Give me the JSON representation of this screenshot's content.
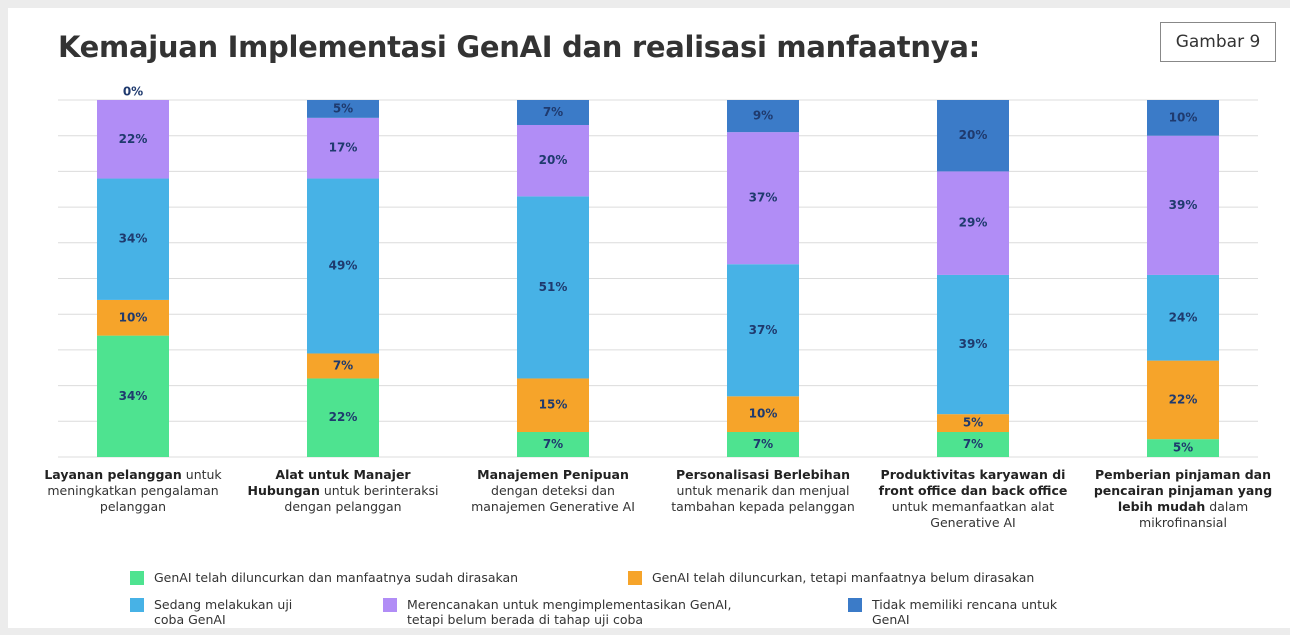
{
  "chart_data": {
    "type": "stacked_bar",
    "title": "Kemajuan Implementasi GenAI dan realisasi manfaatnya:",
    "figure_label": "Gambar 9",
    "categories": [
      {
        "bold": "Layanan pelanggan",
        "text": "untuk meningkatkan pengalaman pelanggan"
      },
      {
        "bold": "Alat untuk Manajer Hubungan",
        "text": "untuk berinteraksi dengan pelanggan"
      },
      {
        "bold": "Manajemen Penipuan",
        "text": "dengan deteksi dan manajemen Generative AI"
      },
      {
        "bold": "Personalisasi Berlebihan",
        "text": "untuk menarik dan menjual tambahan kepada pelanggan"
      },
      {
        "bold": "Produktivitas karyawan di front office dan back office",
        "text": "untuk memanfaatkan alat Generative AI"
      },
      {
        "bold": "Pemberian pinjaman dan pencairan pinjaman yang lebih mudah",
        "text": "dalam mikrofinansial"
      }
    ],
    "series": [
      {
        "name": "GenAI telah diluncurkan dan manfaatnya sudah dirasakan",
        "color": "#4ee390",
        "values": [
          34,
          22,
          7,
          7,
          7,
          5
        ],
        "value_labels": [
          "34%",
          "22%",
          "7%",
          "7%",
          "7%",
          "5%"
        ]
      },
      {
        "name": "GenAI telah diluncurkan, tetapi manfaatnya belum dirasakan",
        "color": "#f6a42a",
        "values": [
          10,
          7,
          15,
          10,
          5,
          22
        ],
        "value_labels": [
          "10%",
          "7%",
          "15%",
          "10%",
          "5%",
          "22%"
        ]
      },
      {
        "name": "Sedang melakukan uji coba GenAI",
        "color": "#47b2e6",
        "values": [
          34,
          49,
          51,
          37,
          39,
          24
        ],
        "value_labels": [
          "34%",
          "49%",
          "51%",
          "37%",
          "39%",
          "24%"
        ]
      },
      {
        "name": "Merencanakan untuk mengimplementasikan GenAI, tetapi belum berada di tahap uji coba",
        "color": "#b18df6",
        "values": [
          22,
          17,
          20,
          37,
          29,
          39
        ],
        "value_labels": [
          "22%",
          "17%",
          "20%",
          "37%",
          "29%",
          "39%"
        ]
      },
      {
        "name": "Tidak memiliki rencana untuk GenAI",
        "color": "#3b7bc8",
        "values": [
          0,
          5,
          7,
          9,
          20,
          10
        ],
        "value_labels": [
          "0%",
          "5%",
          "7%",
          "9%",
          "20%",
          "10%"
        ]
      }
    ],
    "ylim": [
      0,
      100
    ],
    "yticks": [
      0,
      10,
      20,
      30,
      40,
      50,
      60,
      70,
      80,
      90,
      100
    ],
    "grid": true
  }
}
